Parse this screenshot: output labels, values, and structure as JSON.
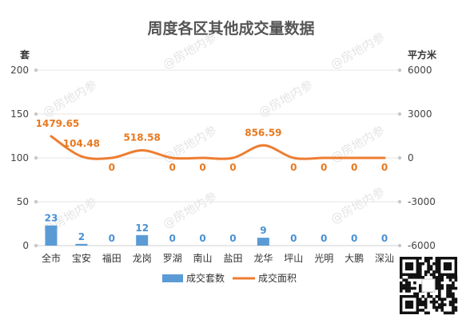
{
  "chart_data": {
    "type": "bar",
    "title": "周度各区其他成交量数据",
    "categories": [
      "全市",
      "宝安",
      "福田",
      "龙岗",
      "罗湖",
      "南山",
      "盐田",
      "龙华",
      "坪山",
      "光明",
      "大鹏",
      "深汕"
    ],
    "series": [
      {
        "name": "成交套数",
        "type": "bar",
        "axis": "left",
        "unit": "套",
        "values": [
          23,
          2,
          0,
          12,
          0,
          0,
          0,
          9,
          0,
          0,
          0,
          0
        ],
        "labels": [
          "23",
          "2",
          "0",
          "12",
          "0",
          "0",
          "0",
          "9",
          "0",
          "0",
          "0",
          "0"
        ],
        "color": "#5b9bd5"
      },
      {
        "name": "成交面积",
        "type": "line",
        "axis": "right",
        "unit": "平方米",
        "values": [
          1479.65,
          104.48,
          0,
          518.58,
          0,
          0,
          0,
          856.59,
          0,
          0,
          0,
          0
        ],
        "labels": [
          "1479.65",
          "104.48",
          "0",
          "518.58",
          "0",
          "0",
          "0",
          "856.59",
          "0",
          "0",
          "0",
          "0"
        ],
        "color": "#ed7d31"
      }
    ],
    "left_axis": {
      "unit": "套",
      "ylim": [
        0,
        200
      ],
      "ticks": [
        "0",
        "50",
        "100",
        "150",
        "200"
      ]
    },
    "right_axis": {
      "unit": "平方米",
      "ylim": [
        -6000,
        6000
      ],
      "ticks": [
        "-6000",
        "-3000",
        "0",
        "3000",
        "6000"
      ]
    },
    "grid": true,
    "legend_position": "bottom",
    "watermark": "@房地内参"
  }
}
